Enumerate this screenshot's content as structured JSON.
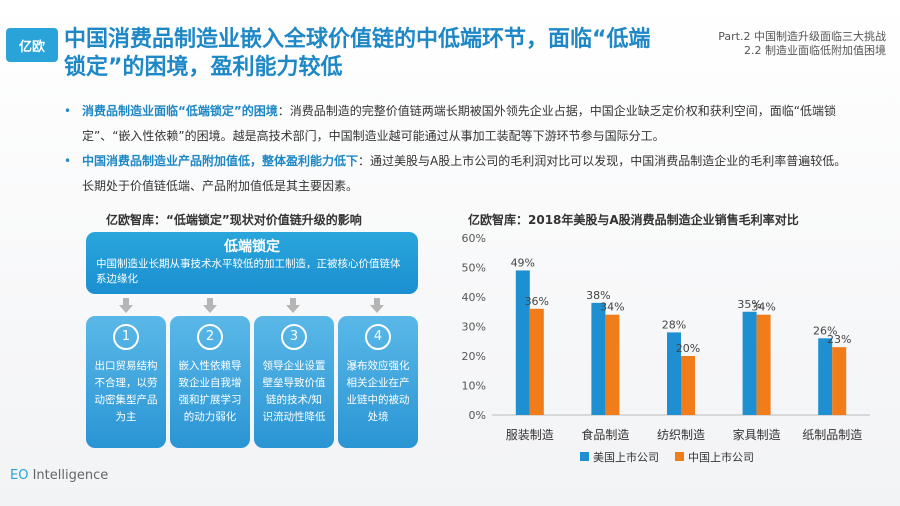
{
  "header": {
    "logo_text": "亿欧",
    "title": "中国消费品制造业嵌入全球价值链的中低端环节，面临“低端锁定”的困境，盈利能力较低",
    "part_line1": "Part.2 中国制造升级面临三大挑战",
    "part_line2": "2.2 制造业面临低附加值困境"
  },
  "bullets": [
    {
      "head": "消费品制造业面临“低端锁定”的困境",
      "body": "：消费品制造的完整价值链两端长期被国外领先企业占据，中国企业缺乏定价权和获利空间，面临“低端锁定”、“嵌入性依赖”的困境。越是高技术部门，中国制造业越可能通过从事加工装配等下游环节参与国际分工。"
    },
    {
      "head": "中国消费品制造业产品附加值低，整体盈利能力低下",
      "body": "：通过美股与A股上市公司的毛利润对比可以发现，中国消费品制造企业的毛利率普遍较低。长期处于价值链低端、产品附加值低是其主要因素。"
    }
  ],
  "left_panel": {
    "title": "亿欧智库：“低端锁定”现状对价值链升级的影响",
    "main_box_title": "低端锁定",
    "main_box_desc": "中国制造业长期从事技术水平较低的加工制造，正被核心价值链体系边缘化",
    "cards": [
      {
        "num": "1",
        "text": "出口贸易结构不合理，以劳动密集型产品为主"
      },
      {
        "num": "2",
        "text": "嵌入性依赖导致企业自我增强和扩展学习的动力弱化"
      },
      {
        "num": "3",
        "text": "领导企业设置壁垒导致价值链的技术/知识流动性降低"
      },
      {
        "num": "4",
        "text": "瀑布效应强化相关企业在产业链中的被动处境"
      }
    ]
  },
  "footer": {
    "brand_a": "EO",
    "brand_b": " Intelligence"
  },
  "chart_data": {
    "type": "bar",
    "title": "亿欧智库：2018年美股与A股消费品制造企业销售毛利率对比",
    "categories": [
      "服装制造",
      "食品制造",
      "纺织制造",
      "家具制造",
      "纸制品制造"
    ],
    "series": [
      {
        "name": "美国上市公司",
        "values": [
          49,
          38,
          28,
          35,
          26
        ],
        "labels": [
          "49%",
          "38%",
          "28%",
          "35%",
          "26%"
        ],
        "color": "#1e8fd0"
      },
      {
        "name": "中国上市公司",
        "values": [
          36,
          34,
          20,
          34,
          23
        ],
        "labels": [
          "36%",
          "34%",
          "20%",
          "34%",
          "23%"
        ],
        "color": "#f07c1a"
      }
    ],
    "ylim": [
      0,
      60
    ],
    "yticks": [
      0,
      10,
      20,
      30,
      40,
      50,
      60
    ],
    "ytick_labels": [
      "0%",
      "10%",
      "20%",
      "30%",
      "40%",
      "50%",
      "60%"
    ],
    "grid": false,
    "legend": "bottom"
  }
}
